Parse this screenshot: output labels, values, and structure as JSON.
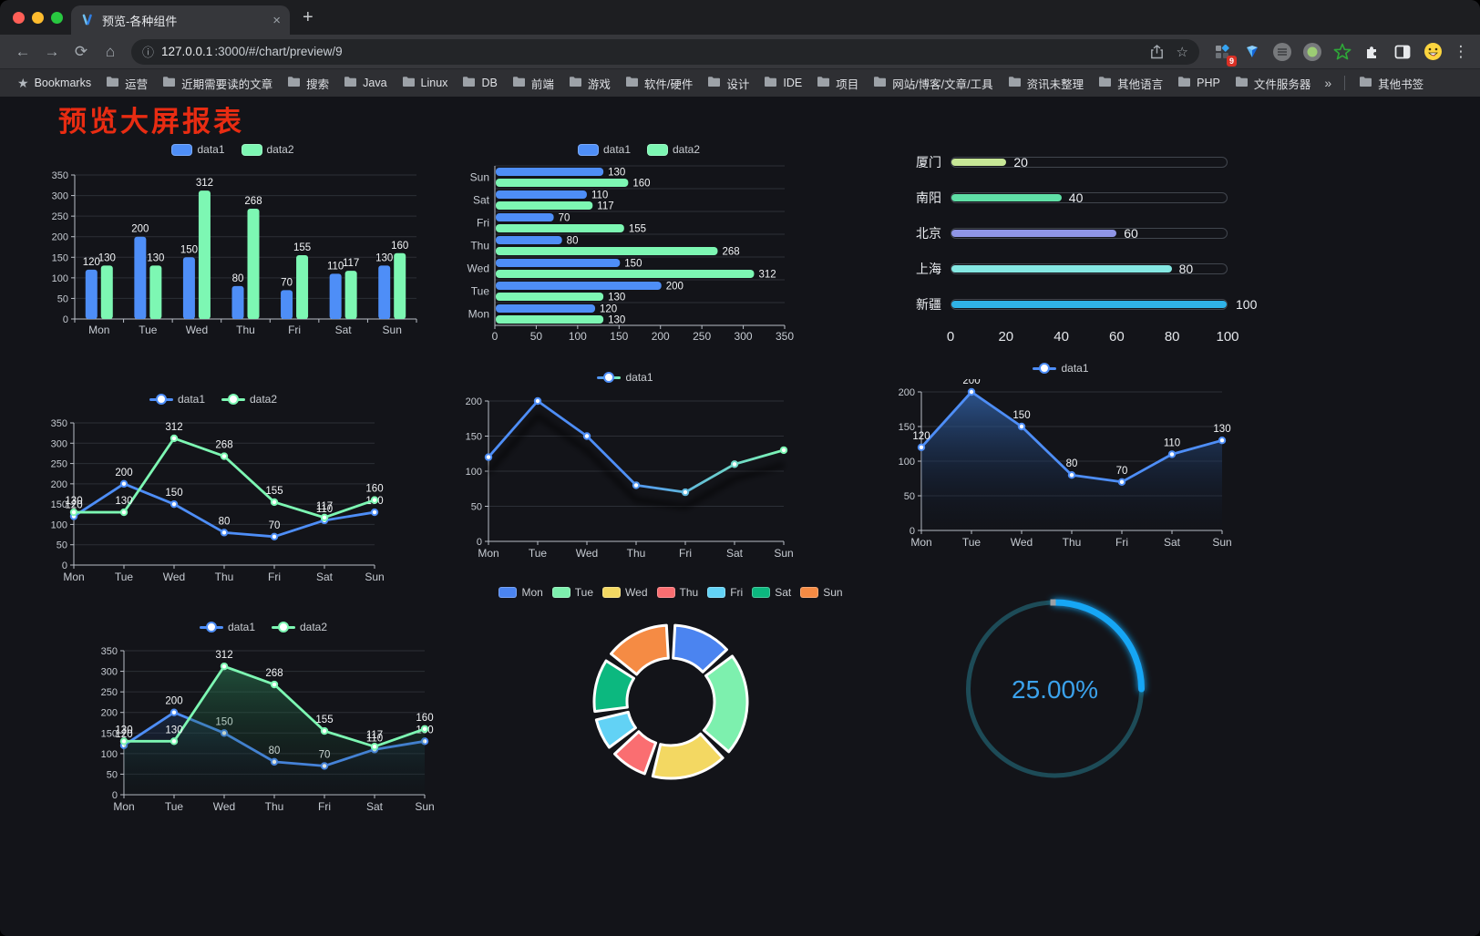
{
  "browser": {
    "tab": {
      "title": "预览-各种组件",
      "close_label": "×",
      "new_tab_label": "+"
    },
    "icons": {
      "back": "←",
      "forward": "→",
      "reload": "⟳",
      "home": "⌂",
      "info": "ⓘ",
      "star": "☆",
      "menu": "⋮",
      "bookmarks_star": "★"
    },
    "url": {
      "host": "127.0.0.1",
      "path": ":3000/#/chart/preview/9"
    },
    "extensions": {
      "badge_count": "9"
    },
    "bookmarks": {
      "label": "Bookmarks",
      "folders": [
        "运营",
        "近期需要读的文章",
        "搜索",
        "Java",
        "Linux",
        "DB",
        "前端",
        "游戏",
        "软件/硬件",
        "设计",
        "IDE",
        "项目",
        "网站/博客/文章/工具",
        "资讯未整理",
        "其他语言",
        "PHP",
        "文件服务器"
      ],
      "overflow_label": "»",
      "other_label": "其他书签"
    }
  },
  "page": {
    "title": "预览大屏报表"
  },
  "chart_data": [
    {
      "id": "bar-vertical",
      "type": "bar",
      "categories": [
        "Mon",
        "Tue",
        "Wed",
        "Thu",
        "Fri",
        "Sat",
        "Sun"
      ],
      "series": [
        {
          "name": "data1",
          "color": "#4e8ef7",
          "values": [
            120,
            200,
            150,
            80,
            70,
            110,
            130
          ]
        },
        {
          "name": "data2",
          "color": "#7df7b3",
          "values": [
            130,
            130,
            312,
            268,
            155,
            117,
            160
          ]
        }
      ],
      "ylim": [
        0,
        350
      ],
      "ystep": 50,
      "legend_position": "top",
      "grid": true
    },
    {
      "id": "bar-horizontal",
      "type": "hbar",
      "categories": [
        "Mon",
        "Tue",
        "Wed",
        "Thu",
        "Fri",
        "Sat",
        "Sun"
      ],
      "row_order_top_to_bottom": [
        "Sun",
        "Sat",
        "Fri",
        "Thu",
        "Wed",
        "Tue",
        "Mon"
      ],
      "series": [
        {
          "name": "data1",
          "color": "#4e8ef7",
          "values": [
            120,
            200,
            150,
            80,
            70,
            110,
            130
          ]
        },
        {
          "name": "data2",
          "color": "#7df7b3",
          "values": [
            130,
            130,
            312,
            268,
            155,
            117,
            160
          ]
        }
      ],
      "xlim": [
        0,
        350
      ],
      "xstep": 50,
      "legend_position": "top",
      "grid": true
    },
    {
      "id": "progress",
      "type": "progress-bars",
      "max": 100,
      "items": [
        {
          "label": "厦门",
          "value": 20,
          "color": "#c7e796"
        },
        {
          "label": "南阳",
          "value": 40,
          "color": "#5fdfa6"
        },
        {
          "label": "北京",
          "value": 60,
          "color": "#8f95e6"
        },
        {
          "label": "上海",
          "value": 80,
          "color": "#85e8e3"
        },
        {
          "label": "新疆",
          "value": 100,
          "color": "#2fb3e8"
        }
      ],
      "axis_ticks": [
        0,
        20,
        40,
        60,
        80,
        100
      ]
    },
    {
      "id": "line-two",
      "type": "line",
      "categories": [
        "Mon",
        "Tue",
        "Wed",
        "Thu",
        "Fri",
        "Sat",
        "Sun"
      ],
      "series": [
        {
          "name": "data1",
          "color": "#4e8ef7",
          "values": [
            120,
            200,
            150,
            80,
            70,
            110,
            130
          ]
        },
        {
          "name": "data2",
          "color": "#7df7b3",
          "values": [
            130,
            130,
            312,
            268,
            155,
            117,
            160
          ]
        }
      ],
      "ylim": [
        0,
        350
      ],
      "ystep": 50,
      "point_labels": true,
      "legend_position": "top"
    },
    {
      "id": "line-gradient",
      "type": "line",
      "categories": [
        "Mon",
        "Tue",
        "Wed",
        "Thu",
        "Fri",
        "Sat",
        "Sun"
      ],
      "series": [
        {
          "name": "data1",
          "gradient": [
            "#4e8ef7",
            "#7df7b3"
          ],
          "values": [
            120,
            200,
            150,
            80,
            70,
            110,
            130
          ]
        }
      ],
      "ylim": [
        0,
        200
      ],
      "ystep": 50,
      "point_labels": false,
      "shadow": true,
      "legend_position": "top"
    },
    {
      "id": "area-single",
      "type": "area",
      "categories": [
        "Mon",
        "Tue",
        "Wed",
        "Thu",
        "Fri",
        "Sat",
        "Sun"
      ],
      "series": [
        {
          "name": "data1",
          "color": "#4e8ef7",
          "values": [
            120,
            200,
            150,
            80,
            70,
            110,
            130
          ],
          "fill": [
            "rgba(52,104,178,0.75)",
            "rgba(10,20,40,0.03)"
          ]
        }
      ],
      "ylim": [
        0,
        200
      ],
      "ystep": 50,
      "point_labels": true,
      "legend_position": "top"
    },
    {
      "id": "area-two",
      "type": "area",
      "categories": [
        "Mon",
        "Tue",
        "Wed",
        "Thu",
        "Fri",
        "Sat",
        "Sun"
      ],
      "series": [
        {
          "name": "data1",
          "color": "#4e8ef7",
          "values": [
            120,
            200,
            150,
            80,
            70,
            110,
            130
          ],
          "fill": [
            "rgba(60,110,185,0.6)",
            "rgba(10,20,40,0.04)"
          ]
        },
        {
          "name": "data2",
          "color": "#7df7b3",
          "values": [
            130,
            130,
            312,
            268,
            155,
            117,
            160
          ],
          "fill": [
            "rgba(50,150,100,0.55)",
            "rgba(10,40,25,0.04)"
          ]
        }
      ],
      "ylim": [
        0,
        350
      ],
      "ystep": 50,
      "point_labels": true,
      "legend_position": "top"
    },
    {
      "id": "donut",
      "type": "pie",
      "categories": [
        "Mon",
        "Tue",
        "Wed",
        "Thu",
        "Fri",
        "Sat",
        "Sun"
      ],
      "values": [
        120,
        200,
        150,
        80,
        70,
        110,
        130
      ],
      "colors": [
        "#4b84f0",
        "#7df0ae",
        "#f3d862",
        "#fa6e71",
        "#62d2f5",
        "#0cb87f",
        "#f58b44"
      ],
      "legend_position": "top",
      "donut": true
    },
    {
      "id": "gauge",
      "type": "gauge",
      "value": 25,
      "label": "25.00%",
      "color": "#17a6f5",
      "track_color": "#1d4b57",
      "text_color": "#3ba2ec"
    }
  ]
}
